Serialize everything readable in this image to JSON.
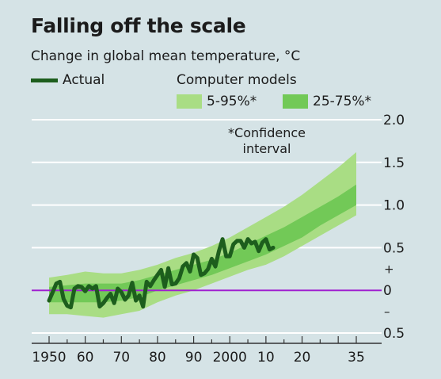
{
  "title": "Falling off the scale",
  "subtitle": "Change in global mean temperature, °C",
  "legend": {
    "actual_label": "Actual",
    "models_title": "Computer models",
    "band_5_95_label": "5-95%*",
    "band_25_75_label": "25-75%*"
  },
  "note": "*Confidence interval",
  "colors": {
    "background": "#d5e3e6",
    "actual": "#1d5e1d",
    "band_5_95": "#a9dd84",
    "band_25_75": "#72c957",
    "zero_line": "#a020d0",
    "gridline": "#ffffff"
  },
  "chart_data": {
    "type": "line",
    "title": "Falling off the scale",
    "subtitle": "Change in global mean temperature, °C",
    "xlabel": "",
    "ylabel": "",
    "xlim": [
      1950,
      2035
    ],
    "ylim": [
      -0.5,
      2.0
    ],
    "grid": true,
    "legend_position": "top",
    "x_tick_labels": [
      {
        "value": 1950,
        "label": "1950"
      },
      {
        "value": 1960,
        "label": "60"
      },
      {
        "value": 1970,
        "label": "70"
      },
      {
        "value": 1980,
        "label": "80"
      },
      {
        "value": 1990,
        "label": "90"
      },
      {
        "value": 2000,
        "label": "2000"
      },
      {
        "value": 2010,
        "label": "10"
      },
      {
        "value": 2020,
        "label": "20"
      },
      {
        "value": 2035,
        "label": "35"
      }
    ],
    "y_tick_labels": [
      {
        "value": 2.0,
        "label": "2.0"
      },
      {
        "value": 1.5,
        "label": "1.5"
      },
      {
        "value": 1.0,
        "label": "1.0"
      },
      {
        "value": 0.5,
        "label": "0.5"
      },
      {
        "value": 0.0,
        "label": "0"
      },
      {
        "value": -0.5,
        "label": "0.5"
      }
    ],
    "y_sign_labels": [
      {
        "value": 0.25,
        "label": "+"
      },
      {
        "value": -0.25,
        "label": "–"
      }
    ],
    "series": [
      {
        "name": "Actual",
        "x": [
          1950,
          1951,
          1952,
          1953,
          1954,
          1955,
          1956,
          1957,
          1958,
          1959,
          1960,
          1961,
          1962,
          1963,
          1964,
          1965,
          1966,
          1967,
          1968,
          1969,
          1970,
          1971,
          1972,
          1973,
          1974,
          1975,
          1976,
          1977,
          1978,
          1979,
          1980,
          1981,
          1982,
          1983,
          1984,
          1985,
          1986,
          1987,
          1988,
          1989,
          1990,
          1991,
          1992,
          1993,
          1994,
          1995,
          1996,
          1997,
          1998,
          1999,
          2000,
          2001,
          2002,
          2003,
          2004,
          2005,
          2006,
          2007,
          2008,
          2009,
          2010,
          2011,
          2012
        ],
        "y": [
          -0.12,
          -0.02,
          0.08,
          0.1,
          -0.1,
          -0.18,
          -0.2,
          0.02,
          0.05,
          0.04,
          -0.01,
          0.05,
          0.02,
          0.05,
          -0.19,
          -0.15,
          -0.09,
          -0.04,
          -0.15,
          0.02,
          -0.02,
          -0.11,
          -0.06,
          0.09,
          -0.12,
          -0.06,
          -0.19,
          0.1,
          0.05,
          0.12,
          0.18,
          0.24,
          0.04,
          0.26,
          0.07,
          0.08,
          0.14,
          0.28,
          0.32,
          0.22,
          0.42,
          0.38,
          0.18,
          0.2,
          0.25,
          0.37,
          0.28,
          0.46,
          0.6,
          0.4,
          0.4,
          0.54,
          0.58,
          0.58,
          0.5,
          0.6,
          0.55,
          0.57,
          0.46,
          0.56,
          0.6,
          0.48,
          0.5
        ]
      }
    ],
    "bands": [
      {
        "name": "5-95%*",
        "x": [
          1950,
          1955,
          1960,
          1965,
          1970,
          1975,
          1980,
          1985,
          1990,
          1995,
          2000,
          2005,
          2010,
          2015,
          2020,
          2025,
          2030,
          2035
        ],
        "lower": [
          -0.28,
          -0.28,
          -0.3,
          -0.32,
          -0.28,
          -0.24,
          -0.14,
          -0.06,
          0.0,
          0.08,
          0.16,
          0.24,
          0.3,
          0.4,
          0.52,
          0.64,
          0.76,
          0.88
        ],
        "upper": [
          0.15,
          0.18,
          0.22,
          0.2,
          0.2,
          0.24,
          0.3,
          0.38,
          0.44,
          0.52,
          0.62,
          0.74,
          0.86,
          0.98,
          1.12,
          1.28,
          1.44,
          1.62
        ]
      },
      {
        "name": "25-75%*",
        "x": [
          1950,
          1955,
          1960,
          1965,
          1970,
          1975,
          1980,
          1985,
          1990,
          1995,
          2000,
          2005,
          2010,
          2015,
          2020,
          2025,
          2030,
          2035
        ],
        "lower": [
          -0.14,
          -0.14,
          -0.14,
          -0.14,
          -0.12,
          -0.08,
          0.0,
          0.06,
          0.12,
          0.18,
          0.26,
          0.34,
          0.42,
          0.52,
          0.62,
          0.76,
          0.88,
          1.0
        ],
        "upper": [
          0.04,
          0.06,
          0.08,
          0.08,
          0.08,
          0.12,
          0.18,
          0.24,
          0.3,
          0.36,
          0.44,
          0.54,
          0.64,
          0.74,
          0.86,
          0.98,
          1.1,
          1.24
        ]
      }
    ]
  }
}
